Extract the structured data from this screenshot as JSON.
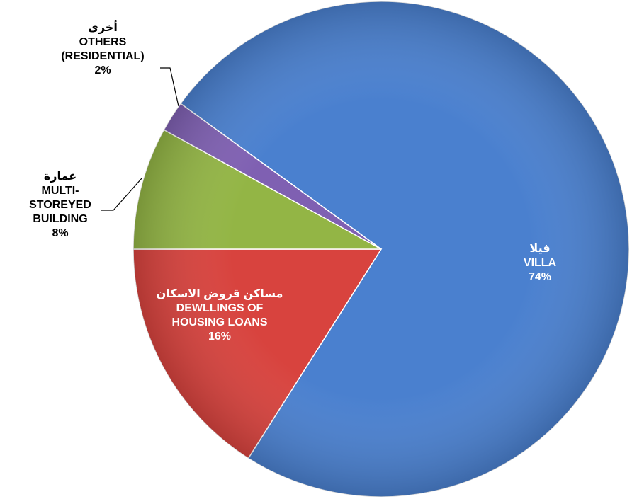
{
  "chart_data": {
    "type": "pie",
    "categories": [
      "VILLA",
      "DEWLLINGS OF HOUSING LOANS",
      "MULTI-STOREYED BUILDING",
      "OTHERS (RESIDENTIAL)"
    ],
    "arabic_labels": [
      "فيلا",
      "مساكن قروض الاسكان",
      "عمارة",
      "أخرى"
    ],
    "values": [
      74,
      16,
      8,
      2
    ],
    "value_labels": [
      "74%",
      "16%",
      "8%",
      "2%"
    ],
    "colors": [
      "#4a80cf",
      "#d8433e",
      "#93b545",
      "#7f60b2"
    ]
  }
}
